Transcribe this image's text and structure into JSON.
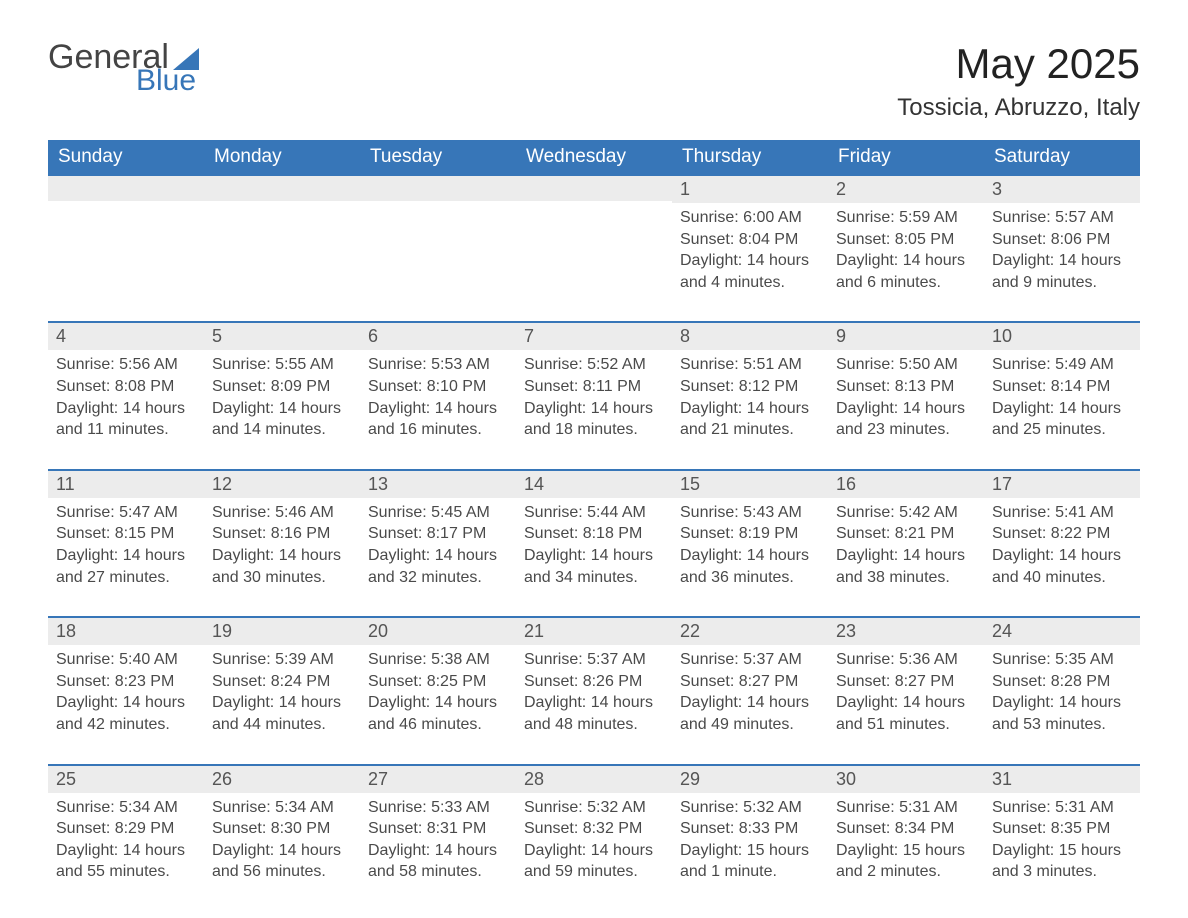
{
  "logo": {
    "word1": "General",
    "word2": "Blue"
  },
  "title": "May 2025",
  "location": "Tossicia, Abruzzo, Italy",
  "colors": {
    "brand": "#3776b8",
    "header_bg": "#3776b8",
    "header_text": "#ffffff",
    "daynum_bg": "#ececec",
    "daynum_border": "#3776b8",
    "text": "#4a4a4a",
    "title_text": "#222222"
  },
  "day_headers": [
    "Sunday",
    "Monday",
    "Tuesday",
    "Wednesday",
    "Thursday",
    "Friday",
    "Saturday"
  ],
  "weeks": [
    [
      null,
      null,
      null,
      null,
      {
        "n": "1",
        "sunrise": "Sunrise: 6:00 AM",
        "sunset": "Sunset: 8:04 PM",
        "day1": "Daylight: 14 hours",
        "day2": "and 4 minutes."
      },
      {
        "n": "2",
        "sunrise": "Sunrise: 5:59 AM",
        "sunset": "Sunset: 8:05 PM",
        "day1": "Daylight: 14 hours",
        "day2": "and 6 minutes."
      },
      {
        "n": "3",
        "sunrise": "Sunrise: 5:57 AM",
        "sunset": "Sunset: 8:06 PM",
        "day1": "Daylight: 14 hours",
        "day2": "and 9 minutes."
      }
    ],
    [
      {
        "n": "4",
        "sunrise": "Sunrise: 5:56 AM",
        "sunset": "Sunset: 8:08 PM",
        "day1": "Daylight: 14 hours",
        "day2": "and 11 minutes."
      },
      {
        "n": "5",
        "sunrise": "Sunrise: 5:55 AM",
        "sunset": "Sunset: 8:09 PM",
        "day1": "Daylight: 14 hours",
        "day2": "and 14 minutes."
      },
      {
        "n": "6",
        "sunrise": "Sunrise: 5:53 AM",
        "sunset": "Sunset: 8:10 PM",
        "day1": "Daylight: 14 hours",
        "day2": "and 16 minutes."
      },
      {
        "n": "7",
        "sunrise": "Sunrise: 5:52 AM",
        "sunset": "Sunset: 8:11 PM",
        "day1": "Daylight: 14 hours",
        "day2": "and 18 minutes."
      },
      {
        "n": "8",
        "sunrise": "Sunrise: 5:51 AM",
        "sunset": "Sunset: 8:12 PM",
        "day1": "Daylight: 14 hours",
        "day2": "and 21 minutes."
      },
      {
        "n": "9",
        "sunrise": "Sunrise: 5:50 AM",
        "sunset": "Sunset: 8:13 PM",
        "day1": "Daylight: 14 hours",
        "day2": "and 23 minutes."
      },
      {
        "n": "10",
        "sunrise": "Sunrise: 5:49 AM",
        "sunset": "Sunset: 8:14 PM",
        "day1": "Daylight: 14 hours",
        "day2": "and 25 minutes."
      }
    ],
    [
      {
        "n": "11",
        "sunrise": "Sunrise: 5:47 AM",
        "sunset": "Sunset: 8:15 PM",
        "day1": "Daylight: 14 hours",
        "day2": "and 27 minutes."
      },
      {
        "n": "12",
        "sunrise": "Sunrise: 5:46 AM",
        "sunset": "Sunset: 8:16 PM",
        "day1": "Daylight: 14 hours",
        "day2": "and 30 minutes."
      },
      {
        "n": "13",
        "sunrise": "Sunrise: 5:45 AM",
        "sunset": "Sunset: 8:17 PM",
        "day1": "Daylight: 14 hours",
        "day2": "and 32 minutes."
      },
      {
        "n": "14",
        "sunrise": "Sunrise: 5:44 AM",
        "sunset": "Sunset: 8:18 PM",
        "day1": "Daylight: 14 hours",
        "day2": "and 34 minutes."
      },
      {
        "n": "15",
        "sunrise": "Sunrise: 5:43 AM",
        "sunset": "Sunset: 8:19 PM",
        "day1": "Daylight: 14 hours",
        "day2": "and 36 minutes."
      },
      {
        "n": "16",
        "sunrise": "Sunrise: 5:42 AM",
        "sunset": "Sunset: 8:21 PM",
        "day1": "Daylight: 14 hours",
        "day2": "and 38 minutes."
      },
      {
        "n": "17",
        "sunrise": "Sunrise: 5:41 AM",
        "sunset": "Sunset: 8:22 PM",
        "day1": "Daylight: 14 hours",
        "day2": "and 40 minutes."
      }
    ],
    [
      {
        "n": "18",
        "sunrise": "Sunrise: 5:40 AM",
        "sunset": "Sunset: 8:23 PM",
        "day1": "Daylight: 14 hours",
        "day2": "and 42 minutes."
      },
      {
        "n": "19",
        "sunrise": "Sunrise: 5:39 AM",
        "sunset": "Sunset: 8:24 PM",
        "day1": "Daylight: 14 hours",
        "day2": "and 44 minutes."
      },
      {
        "n": "20",
        "sunrise": "Sunrise: 5:38 AM",
        "sunset": "Sunset: 8:25 PM",
        "day1": "Daylight: 14 hours",
        "day2": "and 46 minutes."
      },
      {
        "n": "21",
        "sunrise": "Sunrise: 5:37 AM",
        "sunset": "Sunset: 8:26 PM",
        "day1": "Daylight: 14 hours",
        "day2": "and 48 minutes."
      },
      {
        "n": "22",
        "sunrise": "Sunrise: 5:37 AM",
        "sunset": "Sunset: 8:27 PM",
        "day1": "Daylight: 14 hours",
        "day2": "and 49 minutes."
      },
      {
        "n": "23",
        "sunrise": "Sunrise: 5:36 AM",
        "sunset": "Sunset: 8:27 PM",
        "day1": "Daylight: 14 hours",
        "day2": "and 51 minutes."
      },
      {
        "n": "24",
        "sunrise": "Sunrise: 5:35 AM",
        "sunset": "Sunset: 8:28 PM",
        "day1": "Daylight: 14 hours",
        "day2": "and 53 minutes."
      }
    ],
    [
      {
        "n": "25",
        "sunrise": "Sunrise: 5:34 AM",
        "sunset": "Sunset: 8:29 PM",
        "day1": "Daylight: 14 hours",
        "day2": "and 55 minutes."
      },
      {
        "n": "26",
        "sunrise": "Sunrise: 5:34 AM",
        "sunset": "Sunset: 8:30 PM",
        "day1": "Daylight: 14 hours",
        "day2": "and 56 minutes."
      },
      {
        "n": "27",
        "sunrise": "Sunrise: 5:33 AM",
        "sunset": "Sunset: 8:31 PM",
        "day1": "Daylight: 14 hours",
        "day2": "and 58 minutes."
      },
      {
        "n": "28",
        "sunrise": "Sunrise: 5:32 AM",
        "sunset": "Sunset: 8:32 PM",
        "day1": "Daylight: 14 hours",
        "day2": "and 59 minutes."
      },
      {
        "n": "29",
        "sunrise": "Sunrise: 5:32 AM",
        "sunset": "Sunset: 8:33 PM",
        "day1": "Daylight: 15 hours",
        "day2": "and 1 minute."
      },
      {
        "n": "30",
        "sunrise": "Sunrise: 5:31 AM",
        "sunset": "Sunset: 8:34 PM",
        "day1": "Daylight: 15 hours",
        "day2": "and 2 minutes."
      },
      {
        "n": "31",
        "sunrise": "Sunrise: 5:31 AM",
        "sunset": "Sunset: 8:35 PM",
        "day1": "Daylight: 15 hours",
        "day2": "and 3 minutes."
      }
    ]
  ]
}
